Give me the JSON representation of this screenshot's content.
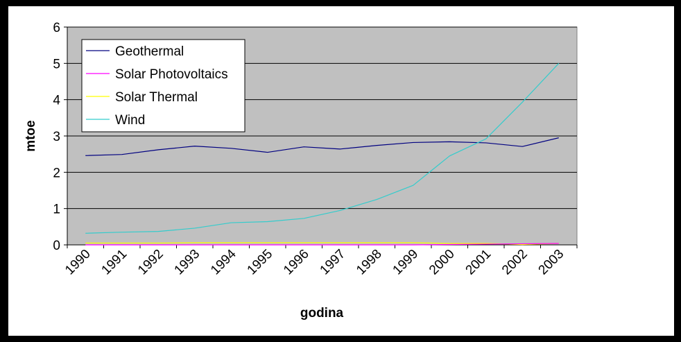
{
  "chart_data": {
    "type": "line",
    "title": "",
    "xlabel": "godina",
    "ylabel": "mtoe",
    "ylim": [
      0,
      6
    ],
    "yticks": [
      0,
      1,
      2,
      3,
      4,
      5,
      6
    ],
    "grid": true,
    "legend_position": "top-left",
    "plot_background": "#c0c0c0",
    "categories": [
      "1990",
      "1991",
      "1992",
      "1993",
      "1994",
      "1995",
      "1996",
      "1997",
      "1998",
      "1999",
      "2000",
      "2001",
      "2002",
      "2003"
    ],
    "series": [
      {
        "name": "Geothermal",
        "color": "#000080",
        "values": [
          2.46,
          2.49,
          2.62,
          2.72,
          2.66,
          2.55,
          2.7,
          2.64,
          2.74,
          2.82,
          2.84,
          2.81,
          2.71,
          2.95
        ]
      },
      {
        "name": "Solar Photovoltaics",
        "color": "#ff00ff",
        "values": [
          0.0,
          0.0,
          0.0,
          0.0,
          0.0,
          0.0,
          0.0,
          0.0,
          0.0,
          0.0,
          0.01,
          0.02,
          0.03,
          0.04
        ]
      },
      {
        "name": "Solar Thermal",
        "color": "#ffff00",
        "values": [
          0.05,
          0.05,
          0.05,
          0.06,
          0.06,
          0.06,
          0.06,
          0.06,
          0.06,
          0.06,
          0.04,
          0.04,
          0.01,
          0.04
        ]
      },
      {
        "name": "Wind",
        "color": "#33cccc",
        "values": [
          0.32,
          0.35,
          0.37,
          0.46,
          0.61,
          0.64,
          0.73,
          0.95,
          1.25,
          1.64,
          2.45,
          2.92,
          3.93,
          5.0
        ]
      }
    ]
  }
}
